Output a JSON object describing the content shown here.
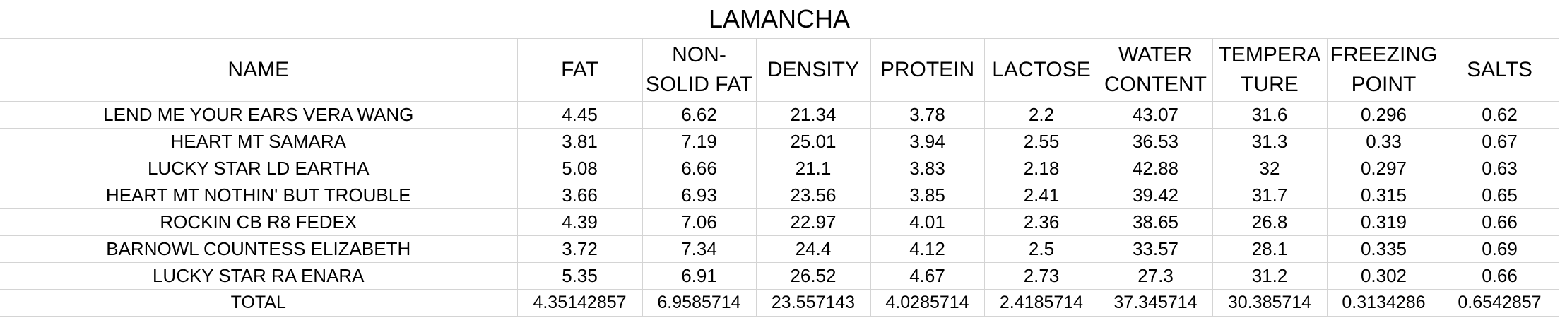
{
  "title": "LAMANCHA",
  "headers": {
    "name": "NAME",
    "fat": "FAT",
    "nonsolid_l1": "NON-",
    "nonsolid_l2": "SOLID FAT",
    "density": "DENSITY",
    "protein": "PROTEIN",
    "lactose": "LACTOSE",
    "water_l1": "WATER",
    "water_l2": "CONTENT",
    "temp_l1": "TEMPERA",
    "temp_l2": "TURE",
    "freezing_l1": "FREEZING",
    "freezing_l2": "POINT",
    "salts": "SALTS"
  },
  "rows": [
    {
      "name": "LEND ME YOUR EARS VERA WANG",
      "fat": "4.45",
      "nonsolid": "6.62",
      "density": "21.34",
      "protein": "3.78",
      "lactose": "2.2",
      "water": "43.07",
      "temperature": "31.6",
      "freezing": "0.296",
      "salts": "0.62"
    },
    {
      "name": "HEART MT SAMARA",
      "fat": "3.81",
      "nonsolid": "7.19",
      "density": "25.01",
      "protein": "3.94",
      "lactose": "2.55",
      "water": "36.53",
      "temperature": "31.3",
      "freezing": "0.33",
      "salts": "0.67"
    },
    {
      "name": "LUCKY STAR LD EARTHA",
      "fat": "5.08",
      "nonsolid": "6.66",
      "density": "21.1",
      "protein": "3.83",
      "lactose": "2.18",
      "water": "42.88",
      "temperature": "32",
      "freezing": "0.297",
      "salts": "0.63"
    },
    {
      "name": "HEART MT NOTHIN' BUT TROUBLE",
      "fat": "3.66",
      "nonsolid": "6.93",
      "density": "23.56",
      "protein": "3.85",
      "lactose": "2.41",
      "water": "39.42",
      "temperature": "31.7",
      "freezing": "0.315",
      "salts": "0.65"
    },
    {
      "name": "ROCKIN CB R8 FEDEX",
      "fat": "4.39",
      "nonsolid": "7.06",
      "density": "22.97",
      "protein": "4.01",
      "lactose": "2.36",
      "water": "38.65",
      "temperature": "26.8",
      "freezing": "0.319",
      "salts": "0.66"
    },
    {
      "name": "BARNOWL COUNTESS ELIZABETH",
      "fat": "3.72",
      "nonsolid": "7.34",
      "density": "24.4",
      "protein": "4.12",
      "lactose": "2.5",
      "water": "33.57",
      "temperature": "28.1",
      "freezing": "0.335",
      "salts": "0.69"
    },
    {
      "name": "LUCKY STAR RA ENARA",
      "fat": "5.35",
      "nonsolid": "6.91",
      "density": "26.52",
      "protein": "4.67",
      "lactose": "2.73",
      "water": "27.3",
      "temperature": "31.2",
      "freezing": "0.302",
      "salts": "0.66"
    }
  ],
  "total": {
    "name": "TOTAL",
    "fat": "4.35142857",
    "nonsolid": "6.9585714",
    "density": "23.557143",
    "protein": "4.0285714",
    "lactose": "2.4185714",
    "water": "37.345714",
    "temperature": "30.385714",
    "freezing": "0.3134286",
    "salts": "0.6542857"
  }
}
